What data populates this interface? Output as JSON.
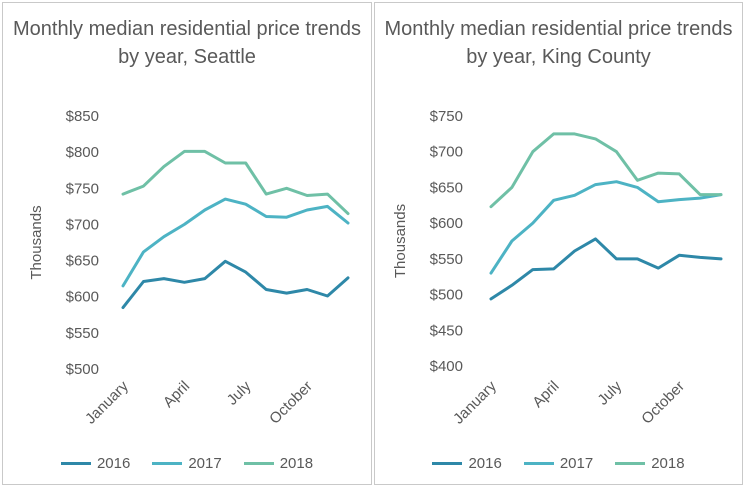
{
  "chart_data": [
    {
      "type": "line",
      "title": "Monthly median residential price trends by year, Seattle",
      "ylabel": "Thousands",
      "ylim": [
        500,
        850
      ],
      "yticks": [
        500,
        550,
        600,
        650,
        700,
        750,
        800,
        850
      ],
      "ytick_labels": [
        "$500",
        "$550",
        "$600",
        "$650",
        "$700",
        "$750",
        "$800",
        "$850"
      ],
      "x": [
        "January",
        "February",
        "March",
        "April",
        "May",
        "June",
        "July",
        "August",
        "September",
        "October",
        "November",
        "December"
      ],
      "xtick_labels": [
        "January",
        "April",
        "July",
        "October"
      ],
      "xtick_indices": [
        0,
        3,
        6,
        9
      ],
      "legend_position": "bottom",
      "series": [
        {
          "name": "2016",
          "color": "#2e88a8",
          "values": [
            585,
            621,
            625,
            620,
            625,
            649,
            634,
            610,
            605,
            610,
            601,
            626
          ]
        },
        {
          "name": "2017",
          "color": "#4db3c4",
          "values": [
            615,
            662,
            683,
            700,
            720,
            735,
            728,
            711,
            710,
            720,
            725,
            702
          ]
        },
        {
          "name": "2018",
          "color": "#6fc0a6",
          "values": [
            742,
            753,
            780,
            801,
            801,
            785,
            785,
            742,
            750,
            740,
            742,
            715
          ]
        }
      ]
    },
    {
      "type": "line",
      "title": "Monthly median residential price trends by year, King County",
      "ylabel": "Thousands",
      "ylim": [
        400,
        750
      ],
      "yticks": [
        400,
        450,
        500,
        550,
        600,
        650,
        700,
        750
      ],
      "ytick_labels": [
        "$400",
        "$450",
        "$500",
        "$550",
        "$600",
        "$650",
        "$700",
        "$750"
      ],
      "x": [
        "January",
        "February",
        "March",
        "April",
        "May",
        "June",
        "July",
        "August",
        "September",
        "October",
        "November",
        "December"
      ],
      "xtick_labels": [
        "January",
        "April",
        "July",
        "October"
      ],
      "xtick_indices": [
        0,
        3,
        6,
        9
      ],
      "legend_position": "bottom",
      "series": [
        {
          "name": "2016",
          "color": "#2e88a8",
          "values": [
            494,
            513,
            535,
            536,
            561,
            578,
            550,
            550,
            537,
            555,
            552,
            550
          ]
        },
        {
          "name": "2017",
          "color": "#4db3c4",
          "values": [
            530,
            575,
            600,
            632,
            639,
            654,
            658,
            650,
            630,
            633,
            635,
            640
          ]
        },
        {
          "name": "2018",
          "color": "#6fc0a6",
          "values": [
            623,
            650,
            700,
            725,
            725,
            718,
            700,
            660,
            670,
            669,
            640,
            640
          ]
        }
      ]
    }
  ]
}
